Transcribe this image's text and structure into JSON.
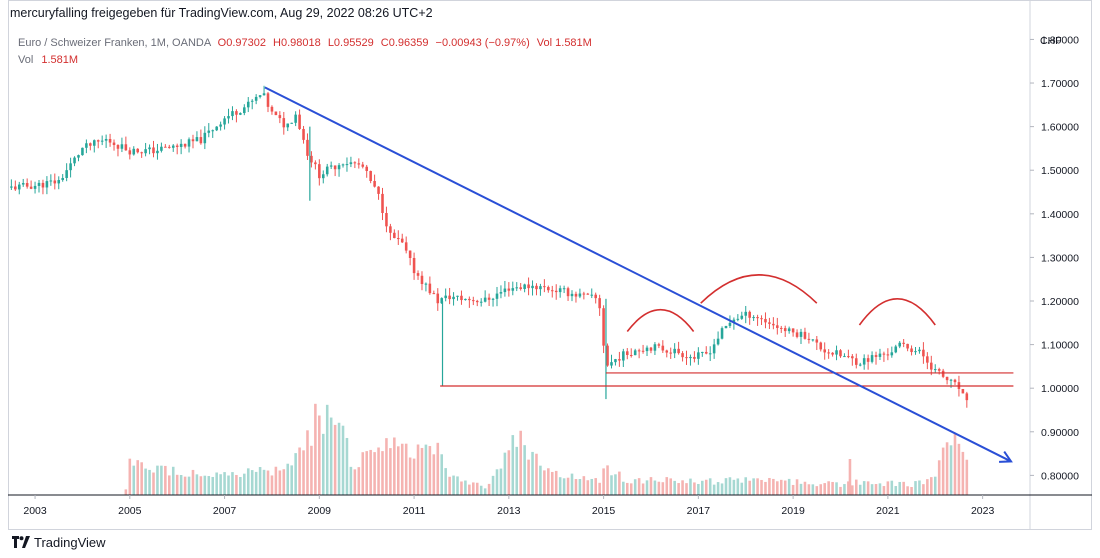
{
  "caption": "mercuryfalling freigegeben für TradingView.com, Aug 29, 2022 08:26 UTC+2",
  "legend": {
    "symbol": "Euro / Schweizer Franken, 1M, OANDA",
    "open": "O0.97302",
    "high": "H0.98018",
    "low": "L0.95529",
    "close": "C0.96359",
    "change": "−0.00943 (−0.97%)",
    "vol_inline": "Vol 1.581M",
    "vol_label": "Vol",
    "vol_value": "1.581M"
  },
  "currency_label": "CHF",
  "footer": {
    "brand": "TradingView"
  },
  "colors": {
    "up": "#26a69a",
    "down": "#ef5350",
    "up_vol": "#a6d8d2",
    "down_vol": "#f5b3b1",
    "trendline": "#2a4fd6",
    "annotation": "#d32f2f"
  },
  "chart_data": {
    "type": "candlestick",
    "interval": "1M",
    "x_range": [
      2002.45,
      2024.0
    ],
    "ylim": [
      0.755,
      1.84
    ],
    "y_ticks": [
      "1.80000",
      "1.70000",
      "1.60000",
      "1.50000",
      "1.40000",
      "1.30000",
      "1.20000",
      "1.10000",
      "1.00000",
      "0.90000",
      "0.80000"
    ],
    "y_tick_values": [
      1.8,
      1.7,
      1.6,
      1.5,
      1.4,
      1.3,
      1.2,
      1.1,
      1.0,
      0.9,
      0.8
    ],
    "x_ticks": [
      "2003",
      "2005",
      "2007",
      "2009",
      "2011",
      "2013",
      "2015",
      "2017",
      "2019",
      "2021",
      "2023"
    ],
    "x_tick_values": [
      2003,
      2005,
      2007,
      2009,
      2011,
      2013,
      2015,
      2017,
      2019,
      2021,
      2023
    ],
    "close_path": [
      [
        2002.5,
        1.46
      ],
      [
        2003.0,
        1.465
      ],
      [
        2003.5,
        1.475
      ],
      [
        2004.0,
        1.55
      ],
      [
        2004.5,
        1.57
      ],
      [
        2005.0,
        1.545
      ],
      [
        2005.5,
        1.545
      ],
      [
        2006.0,
        1.555
      ],
      [
        2006.5,
        1.57
      ],
      [
        2007.0,
        1.62
      ],
      [
        2007.5,
        1.65
      ],
      [
        2007.8,
        1.675
      ],
      [
        2008.0,
        1.63
      ],
      [
        2008.3,
        1.6
      ],
      [
        2008.5,
        1.63
      ],
      [
        2008.75,
        1.54
      ],
      [
        2009.0,
        1.49
      ],
      [
        2009.5,
        1.52
      ],
      [
        2009.9,
        1.51
      ],
      [
        2010.25,
        1.44
      ],
      [
        2010.5,
        1.35
      ],
      [
        2010.75,
        1.33
      ],
      [
        2011.0,
        1.27
      ],
      [
        2011.5,
        1.2
      ],
      [
        2011.75,
        1.21
      ],
      [
        2012.0,
        1.205
      ],
      [
        2012.5,
        1.201
      ],
      [
        2013.0,
        1.23
      ],
      [
        2013.5,
        1.235
      ],
      [
        2014.0,
        1.225
      ],
      [
        2014.9,
        1.203
      ],
      [
        2015.05,
        1.05
      ],
      [
        2015.3,
        1.07
      ],
      [
        2015.7,
        1.09
      ],
      [
        2016.0,
        1.095
      ],
      [
        2016.5,
        1.085
      ],
      [
        2016.9,
        1.07
      ],
      [
        2017.2,
        1.08
      ],
      [
        2017.5,
        1.13
      ],
      [
        2017.75,
        1.16
      ],
      [
        2018.1,
        1.17
      ],
      [
        2018.5,
        1.15
      ],
      [
        2018.9,
        1.13
      ],
      [
        2019.3,
        1.12
      ],
      [
        2019.6,
        1.09
      ],
      [
        2020.0,
        1.075
      ],
      [
        2020.4,
        1.06
      ],
      [
        2020.8,
        1.075
      ],
      [
        2021.0,
        1.08
      ],
      [
        2021.3,
        1.1
      ],
      [
        2021.7,
        1.08
      ],
      [
        2022.0,
        1.04
      ],
      [
        2022.3,
        1.015
      ],
      [
        2022.5,
        1.0
      ],
      [
        2022.65,
        0.964
      ]
    ],
    "spikes": [
      {
        "x": 2008.8,
        "low": 1.43,
        "high": 1.6
      },
      {
        "x": 2011.6,
        "low": 1.005,
        "high": 1.2
      },
      {
        "x": 2015.05,
        "low": 0.975,
        "high": 1.205
      }
    ],
    "volume_envelope": [
      [
        2002.5,
        0.0
      ],
      [
        2004.9,
        0.0
      ],
      [
        2005.0,
        0.26
      ],
      [
        2006.5,
        0.19
      ],
      [
        2007.0,
        0.18
      ],
      [
        2008.0,
        0.2
      ],
      [
        2008.5,
        0.3
      ],
      [
        2008.8,
        0.55
      ],
      [
        2009.0,
        0.75
      ],
      [
        2009.4,
        0.62
      ],
      [
        2009.7,
        0.28
      ],
      [
        2010.5,
        0.42
      ],
      [
        2011.0,
        0.38
      ],
      [
        2011.5,
        0.5
      ],
      [
        2011.7,
        0.18
      ],
      [
        2012.5,
        0.07
      ],
      [
        2012.9,
        0.3
      ],
      [
        2013.2,
        0.55
      ],
      [
        2013.5,
        0.35
      ],
      [
        2014.0,
        0.18
      ],
      [
        2014.9,
        0.12
      ],
      [
        2015.05,
        0.25
      ],
      [
        2015.5,
        0.13
      ],
      [
        2017.0,
        0.12
      ],
      [
        2018.5,
        0.13
      ],
      [
        2020.0,
        0.09
      ],
      [
        2020.4,
        0.12
      ],
      [
        2021.5,
        0.09
      ],
      [
        2022.0,
        0.14
      ],
      [
        2022.2,
        0.4
      ],
      [
        2022.4,
        0.58
      ],
      [
        2022.55,
        0.5
      ],
      [
        2022.65,
        0.35
      ]
    ],
    "volume_spikes": [
      [
        2020.2,
        0.3
      ]
    ],
    "trendline": {
      "from": [
        2007.85,
        1.69
      ],
      "to": [
        2023.6,
        0.832
      ]
    },
    "support_lines": [
      {
        "x1": 2011.55,
        "x2": 2023.65,
        "y": 1.005
      },
      {
        "x1": 2015.05,
        "x2": 2023.65,
        "y": 1.035
      }
    ],
    "arcs": [
      {
        "x1": 2015.5,
        "x2": 2016.9,
        "base": 1.13,
        "peak": 1.18
      },
      {
        "x1": 2017.05,
        "x2": 2019.5,
        "base": 1.195,
        "peak": 1.26
      },
      {
        "x1": 2020.4,
        "x2": 2022.0,
        "base": 1.145,
        "peak": 1.205
      }
    ]
  }
}
